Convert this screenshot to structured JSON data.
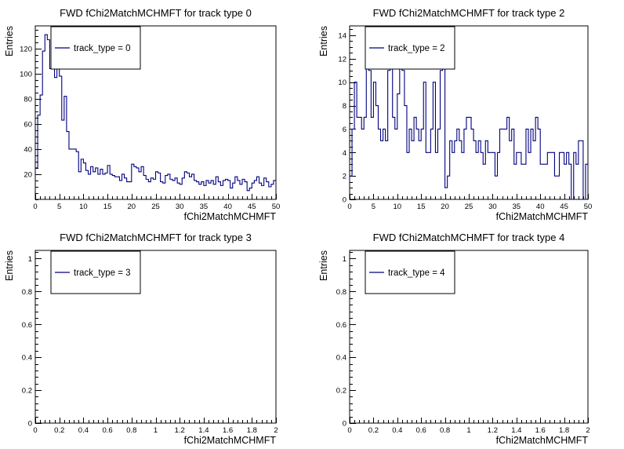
{
  "chart_data": [
    {
      "type": "histogram",
      "title": "FWD fChi2MatchMCHMFT for track type 0",
      "xlabel": "fChi2MatchMCHMFT",
      "ylabel": "Entries",
      "xlim": [
        0,
        50
      ],
      "ylim": [
        0,
        138
      ],
      "xticks": [
        0,
        5,
        10,
        15,
        20,
        25,
        30,
        35,
        40,
        45,
        50
      ],
      "yticks": [
        20,
        40,
        60,
        80,
        100,
        120
      ],
      "legend": {
        "label": "track_type = 0",
        "placement": "top-left"
      },
      "series": [
        {
          "name": "track_type = 0",
          "color": "#000080",
          "bin_width": 0.5,
          "values": [
            25,
            67,
            83,
            118,
            131,
            127,
            104,
            104,
            97,
            104,
            98,
            63,
            82,
            54,
            40,
            40,
            40,
            38,
            22,
            32,
            29,
            23,
            20,
            26,
            22,
            25,
            20,
            24,
            20,
            21,
            27,
            20,
            19,
            18,
            18,
            15,
            20,
            17,
            14,
            14,
            28,
            26,
            25,
            22,
            26,
            19,
            16,
            14,
            17,
            16,
            22,
            21,
            14,
            13,
            19,
            20,
            16,
            15,
            17,
            13,
            12,
            17,
            22,
            21,
            18,
            20,
            15,
            14,
            12,
            14,
            11,
            15,
            13,
            15,
            12,
            18,
            14,
            11,
            15,
            16,
            15,
            9,
            13,
            18,
            15,
            12,
            16,
            14,
            7,
            9,
            13,
            15,
            18,
            13,
            11,
            17,
            14,
            10,
            12,
            15
          ]
        }
      ]
    },
    {
      "type": "histogram",
      "title": "FWD fChi2MatchMCHMFT for track type 2",
      "xlabel": "fChi2MatchMCHMFT",
      "ylabel": "Entries",
      "xlim": [
        0,
        50
      ],
      "ylim": [
        0,
        14.8
      ],
      "xticks": [
        0,
        5,
        10,
        15,
        20,
        25,
        30,
        35,
        40,
        45,
        50
      ],
      "yticks": [
        0,
        2,
        4,
        6,
        8,
        10,
        12,
        14
      ],
      "legend": {
        "label": "track_type = 2",
        "placement": "top-left"
      },
      "series": [
        {
          "name": "track_type = 2",
          "color": "#000080",
          "bin_width": 0.5,
          "values": [
            2,
            6,
            10,
            7,
            7,
            6,
            7,
            12,
            11,
            7,
            10,
            8,
            6,
            5,
            6,
            5,
            11,
            12,
            7,
            6,
            9,
            12,
            11,
            8,
            4,
            6,
            5,
            7,
            6,
            5,
            6,
            10,
            4,
            4,
            6,
            10,
            4,
            6,
            11,
            12,
            1,
            2,
            5,
            4,
            5,
            6,
            5,
            4,
            6,
            7,
            7,
            6,
            5,
            4,
            5,
            4,
            3,
            5,
            4,
            4,
            4,
            2,
            4,
            6,
            6,
            6,
            7,
            5,
            6,
            3,
            4,
            4,
            3,
            3,
            6,
            4,
            6,
            5,
            7,
            6,
            3,
            3,
            3,
            4,
            4,
            4,
            2,
            2,
            4,
            4,
            3,
            4,
            3,
            0,
            4,
            3,
            5,
            5,
            0,
            3
          ]
        }
      ]
    },
    {
      "type": "histogram",
      "title": "FWD fChi2MatchMCHMFT for track type 3",
      "xlabel": "fChi2MatchMCHMFT",
      "ylabel": "Entries",
      "xlim": [
        0,
        2
      ],
      "ylim": [
        0,
        1.05
      ],
      "xticks": [
        0,
        0.2,
        0.4,
        0.6,
        0.8,
        1,
        1.2,
        1.4,
        1.6,
        1.8,
        2
      ],
      "yticks": [
        0,
        0.2,
        0.4,
        0.6,
        0.8,
        1
      ],
      "legend": {
        "label": "track_type = 3",
        "placement": "top-left"
      },
      "series": [
        {
          "name": "track_type = 3",
          "color": "#000080",
          "values": []
        }
      ]
    },
    {
      "type": "histogram",
      "title": "FWD fChi2MatchMCHMFT for track type 4",
      "xlabel": "fChi2MatchMCHMFT",
      "ylabel": "Entries",
      "xlim": [
        0,
        2
      ],
      "ylim": [
        0,
        1.05
      ],
      "xticks": [
        0,
        0.2,
        0.4,
        0.6,
        0.8,
        1,
        1.2,
        1.4,
        1.6,
        1.8,
        2
      ],
      "yticks": [
        0,
        0.2,
        0.4,
        0.6,
        0.8,
        1
      ],
      "legend": {
        "label": "track_type = 4",
        "placement": "top-left"
      },
      "series": [
        {
          "name": "track_type = 4",
          "color": "#000080",
          "values": []
        }
      ]
    }
  ]
}
